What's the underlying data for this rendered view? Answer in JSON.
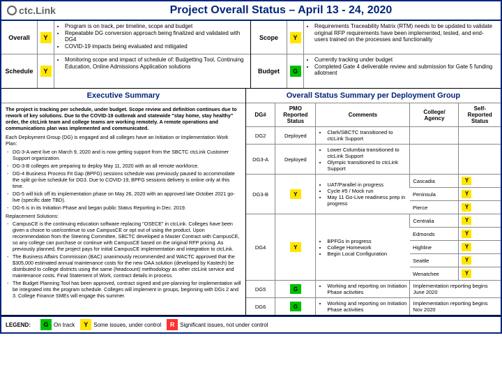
{
  "colors": {
    "frame": "#00247d",
    "title": "#00247d",
    "G": "#00c000",
    "Y": "#ffe600",
    "R": "#ff3030"
  },
  "logo": {
    "text": "ctc.Link"
  },
  "title": "Project Overall Status – April 13 - 24, 2020",
  "top": {
    "overall": {
      "label": "Overall",
      "status": "Y",
      "bullets": [
        "Program is on track, per timeline, scope and budget",
        "Repeatable DG conversion approach being finalized and validated with DG4",
        "COVID-19 impacts being evaluated and mitigated"
      ]
    },
    "scope": {
      "label": "Scope",
      "status": "Y",
      "bullets": [
        "Requirements Traceability Matrix (RTM) needs to be updated to validate original RFP requirements have been implemented, tested, and end-users trained on the processes and functionality"
      ]
    },
    "schedule": {
      "label": "Schedule",
      "status": "Y",
      "bullets": [
        "Monitoring scope and impact of schedule of: Budgetting Tool, Continuing Education, Online Admissions Application solutions"
      ]
    },
    "budget": {
      "label": "Budget",
      "status": "G",
      "bullets": [
        "Currently tracking under budget",
        "Completed Gate 4 deliverable review and submission for Gate 5 funding allotment"
      ]
    }
  },
  "exec": {
    "header": "Executive Summary",
    "intro": "The project is tracking per schedule, under budget. Scope review and definition continues due to rework of key solutions. Due to the COVID-19 outbreak and statewide \"stay home, stay healthy\" order, the ctcLink team and college teams are working remotely. A remote operations and communications plan was implemented and communicated.",
    "eachDG": "Each Deployment Group (DG) is engaged and all colleges have an Initiation or Implementation Work Plan:",
    "dgBullets": [
      "DG-3-A went live on March 9, 2020 and is now getting support from the SBCTC ctcLink Customer Support organization.",
      "DG-3-B colleges are preparing to deploy May 11, 2020 with an all remote workforce.",
      "DG-4 Business Process Fit Gap (BPFG) sessions schedule was previously paused to accommodate the split go-live schedule for DG3. Due to COVID-19, BPFG sessions delivery is online only at this time.",
      "DG-5 will kick off its implementation phase on May 26, 2020 with an approved late October 2021 go-live (specific date TBD).",
      "DG-6 is in its Initiation Phase and began public Status Reporting in Dec. 2019."
    ],
    "replHeader": "Replacement Solutions:",
    "replBullets": [
      "CampusCE is the continuing education software replacing \"OSECE\" in ctcLink. Colleges have been given a choice to use/continue to use CampusCE or opt out of using the product. Upon recommendation from the Steering Committee, SBCTC developed a Master Contract with CampusCE, so any college can purchase or continue with CampusCE based on the original RFP pricing. As previously planned, the project pays for initial CampusCE implementation and integration to ctcLink.",
      "The Business Affairs Commission (BAC) unanimously recommended and WACTC approved that the $305,000 estimated annual maintenance costs for the new OAA solution (developed by Kastech) be distributed to college districts using the same (headcount) methodology as other ctcLink service and maintenance costs. Final Statement of Work, contract details in process.",
      "The Budget Planning Tool has been approved, contract signed and pre-planning for implementation will be integrated into the program schedule. Colleges will implement in groups, beginning with DGs 2 and 3. College Finance SMEs will engage this summer."
    ]
  },
  "deploy": {
    "header": "Overall Status Summary per Deployment Group",
    "cols": [
      "DG#",
      "PMO Reported Status",
      "Comments",
      "College/ Agency",
      "Self-Reported Status"
    ],
    "rowDG2": {
      "dg": "DG2",
      "pmo": "Deployed",
      "comments": [
        "Clark/SBCTC transitioned to ctcLink Support"
      ]
    },
    "rowDG3A": {
      "dg": "DG3-A",
      "pmo": "Deployed",
      "comments": [
        "Lower Columbia transitioned to ctcLink Support",
        "Olympic transitioned to ctcLink Support"
      ]
    },
    "rowDG3B": {
      "dg": "DG3-B",
      "pmo": "Y",
      "comments": [
        "UAT/Parallel in progress",
        "Cycle #5 / Mock run",
        "May 11 Go-Live readiness prep in progress"
      ],
      "colleges": [
        {
          "name": "Cascadia",
          "status": "Y"
        },
        {
          "name": "Peninsula",
          "status": "Y"
        },
        {
          "name": "Pierce",
          "status": "Y"
        }
      ]
    },
    "rowDG4": {
      "dg": "DG4",
      "pmo": "Y",
      "comments": [
        "BPFGs in progress",
        "College Homework",
        "Begin Local Configuration"
      ],
      "colleges": [
        {
          "name": "Centralia",
          "status": "Y"
        },
        {
          "name": "Edmonds",
          "status": "Y"
        },
        {
          "name": "Highline",
          "status": "Y"
        },
        {
          "name": "Seattle",
          "status": "Y"
        },
        {
          "name": "Wenatchee",
          "status": "Y"
        }
      ]
    },
    "rowDG5": {
      "dg": "DG5",
      "pmo": "G",
      "comments": [
        "Working and reporting on Initiation Phase activities"
      ],
      "collegeNote": "Implementation reporting begins June 2020"
    },
    "rowDG6": {
      "dg": "DG6",
      "pmo": "G",
      "comments": [
        "Working and reporting on Initiation Phase activities"
      ],
      "collegeNote": "Implementation reporting begins Nov 2020"
    }
  },
  "legend": {
    "label": "LEGEND:",
    "items": [
      {
        "code": "G",
        "text": "On track"
      },
      {
        "code": "Y",
        "text": "Some issues, under control"
      },
      {
        "code": "R",
        "text": "Significant issues, not under control"
      }
    ]
  }
}
